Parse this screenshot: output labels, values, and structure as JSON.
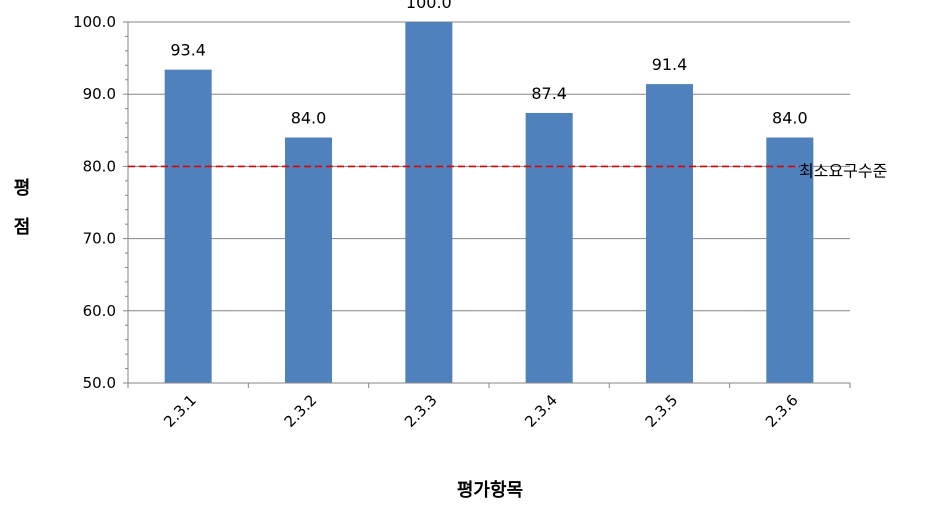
{
  "chart_data": {
    "type": "bar",
    "categories": [
      "2.3.1",
      "2.3.2",
      "2.3.3",
      "2.3.4",
      "2.3.5",
      "2.3.6"
    ],
    "values": [
      93.4,
      84.0,
      100.0,
      87.4,
      91.4,
      84.0
    ],
    "data_labels": [
      "93.4",
      "84.0",
      "100.0",
      "87.4",
      "91.4",
      "84.0"
    ],
    "xlabel": "평가항목",
    "ylabel": "평점",
    "ylim": [
      50,
      100
    ],
    "yticks": [
      "50.0",
      "60.0",
      "70.0",
      "80.0",
      "90.0",
      "100.0"
    ],
    "grid": true,
    "bar_color": "#4f81bd",
    "reference_line": {
      "value": 80,
      "label": "최소요구수준",
      "color": "#e00000",
      "style": "dashed"
    }
  }
}
